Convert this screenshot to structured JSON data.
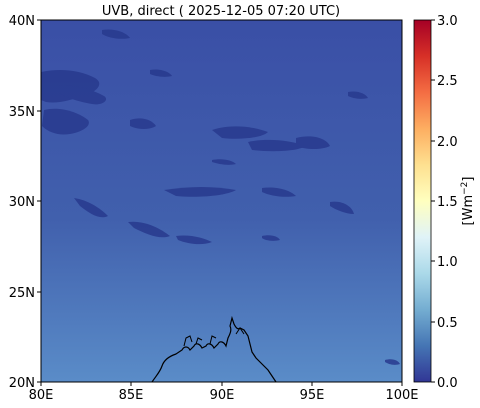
{
  "map": {
    "title": "UVB, direct ( 2025-12-05 07:20 UTC)",
    "lon_ticks": [
      "80E",
      "85E",
      "90E",
      "95E",
      "100E"
    ],
    "lat_ticks": [
      "20N",
      "25N",
      "30N",
      "35N",
      "40N"
    ],
    "extent": {
      "lon": [
        80,
        100
      ],
      "lat": [
        20,
        40
      ]
    }
  },
  "colorbar": {
    "label": "[Wm",
    "label_sup": "−2",
    "label_end": "]",
    "ticks": [
      "0.0",
      "0.5",
      "1.0",
      "1.5",
      "2.0",
      "2.5",
      "3.0"
    ],
    "range": [
      0,
      3
    ],
    "colormap": [
      "#313695",
      "#4575b4",
      "#74add1",
      "#abd9e9",
      "#e0f3f8",
      "#ffffbf",
      "#fee090",
      "#fdae61",
      "#f46d43",
      "#d73027",
      "#a50026"
    ]
  },
  "field": {
    "gradient_top": "#3a4fa6",
    "gradient_mid": "#4160ad",
    "gradient_bottom": "#5a8cc8",
    "cloud_color": "#283a8e",
    "coast_color": "#000000"
  }
}
